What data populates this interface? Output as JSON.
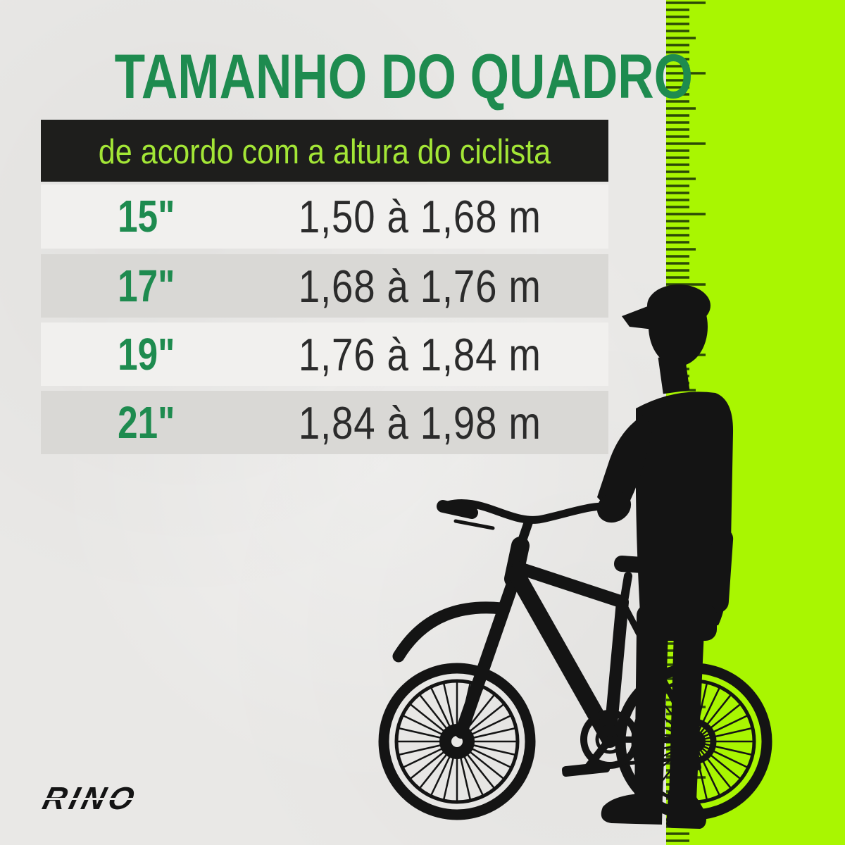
{
  "title": "TAMANHO DO QUADRO",
  "banner": {
    "text": "de acordo com a altura do ciclista"
  },
  "table": {
    "rows": [
      {
        "size": "15\"",
        "range": "1,50 à 1,68 m"
      },
      {
        "size": "17\"",
        "range": "1,68 à 1,76 m"
      },
      {
        "size": "19\"",
        "range": "1,76 à 1,84 m"
      },
      {
        "size": "21\"",
        "range": "1,84 à 1,98 m"
      }
    ]
  },
  "brand": {
    "logo_text": "RINO"
  },
  "illustration": {
    "name": "cyclist-with-cap-standing-behind-bicycle-silhouette-against-lime-ruler"
  },
  "colors": {
    "page_bg": "#e9e8e6",
    "accent_green": "#1e8b4f",
    "lime": "#a9f601",
    "banner_bg": "#1e1e1c",
    "banner_text": "#a3e636",
    "row_light": "#f1f0ee",
    "row_dark": "#d9d8d5",
    "range_text": "#2b2b2b",
    "tick": "#2c4a06",
    "silhouette": "#141414"
  }
}
